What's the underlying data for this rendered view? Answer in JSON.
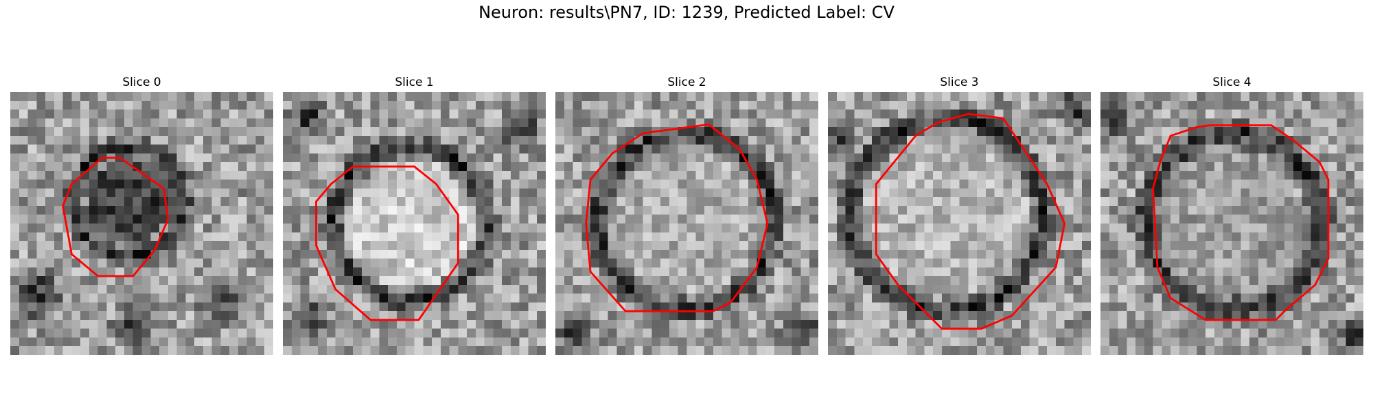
{
  "figure": {
    "title": "Neuron: results\\PN7, ID: 1239, Predicted Label: CV"
  },
  "slices": [
    {
      "title": "Slice 0"
    },
    {
      "title": "Slice 1"
    },
    {
      "title": "Slice 2"
    },
    {
      "title": "Slice 3"
    },
    {
      "title": "Slice 4"
    }
  ],
  "colors": {
    "contour": "#ff0000",
    "background": "#ffffff",
    "text": "#000000"
  }
}
